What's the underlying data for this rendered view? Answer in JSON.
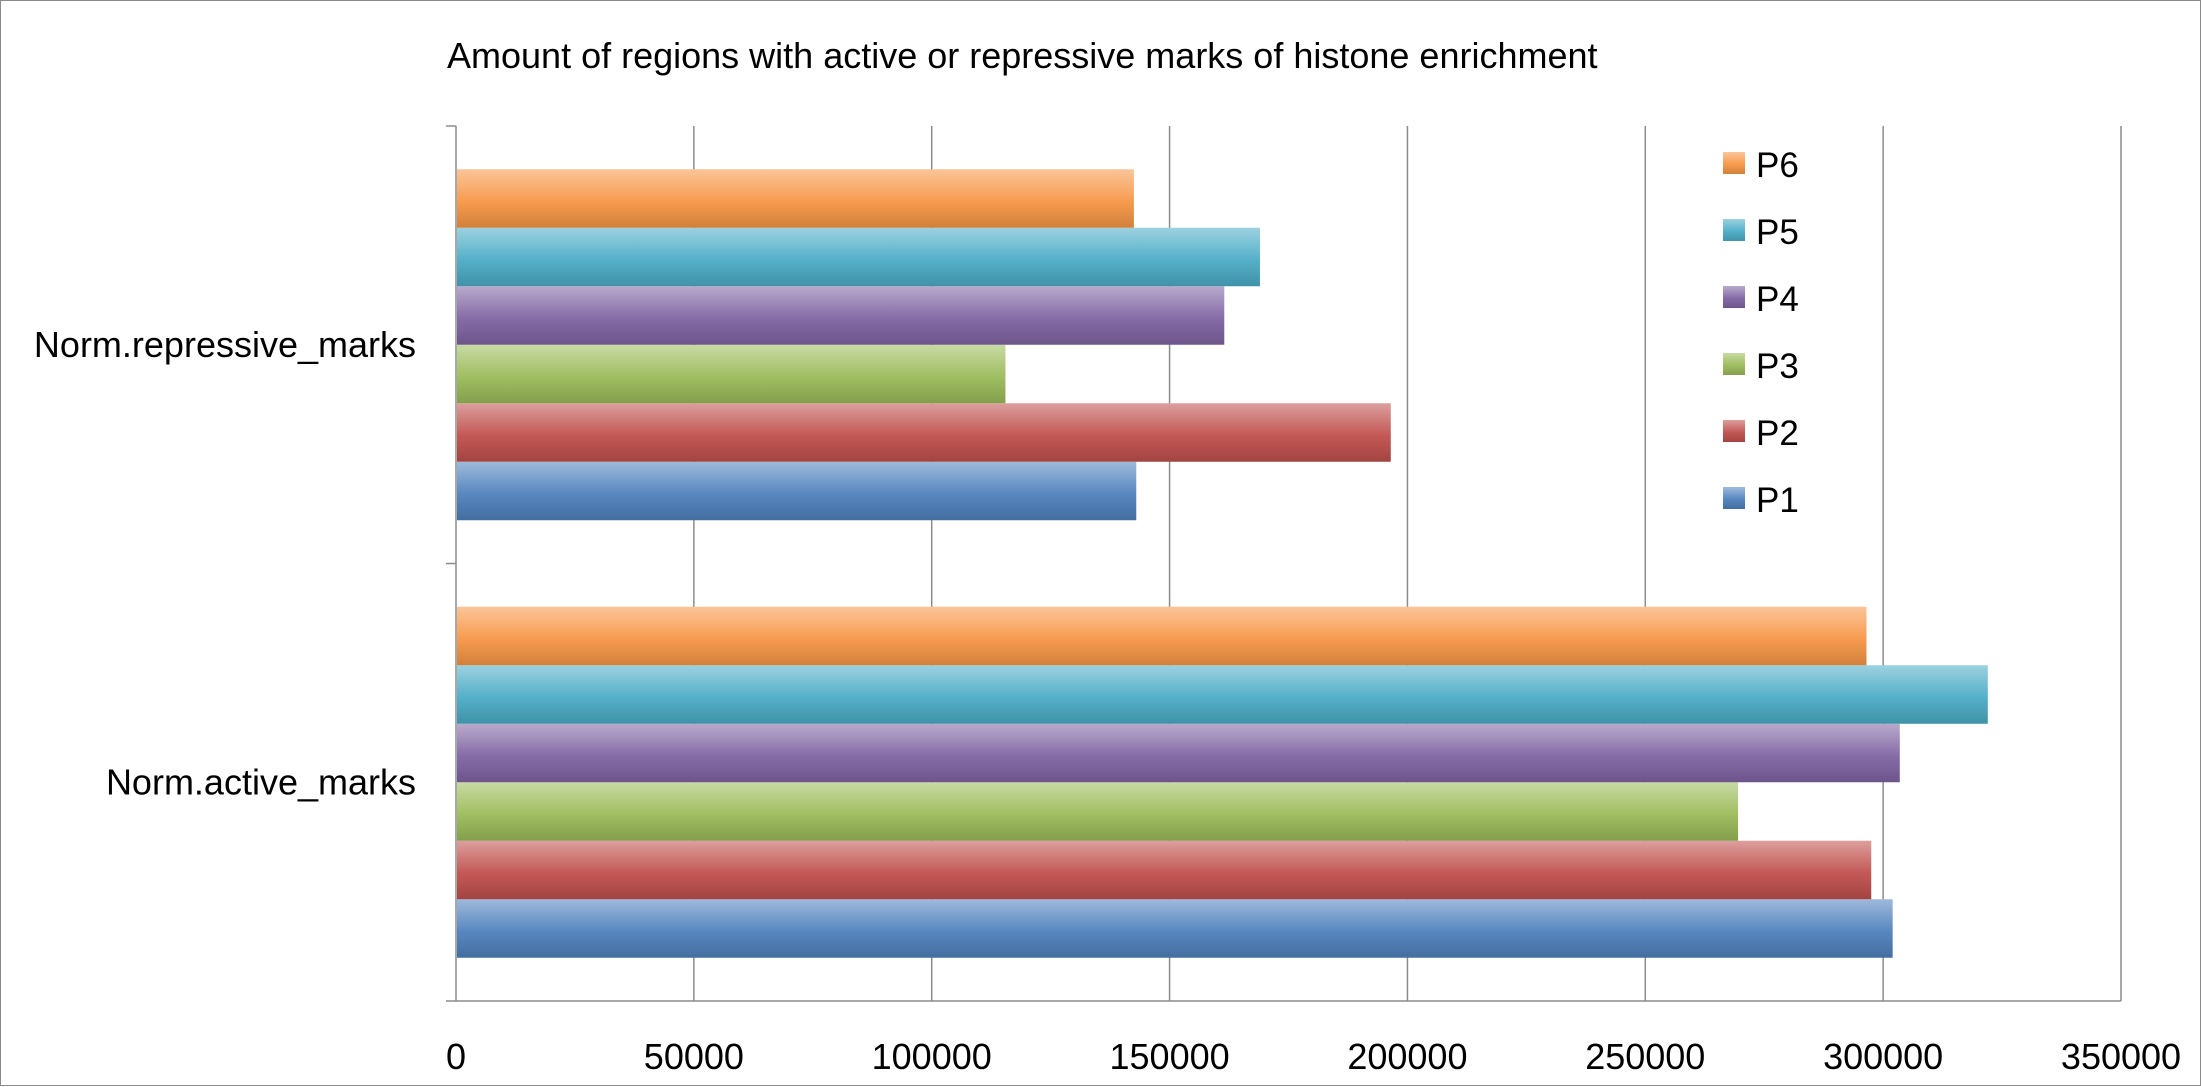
{
  "chart_data": {
    "type": "bar",
    "orientation": "horizontal",
    "title": "Amount of regions with active or repressive marks of histone enrichment",
    "categories": [
      "Norm.active_marks",
      "Norm.repressive_marks"
    ],
    "series": [
      {
        "name": "P1",
        "values": [
          302000,
          143000
        ],
        "color": "#4f81bd"
      },
      {
        "name": "P2",
        "values": [
          297500,
          196500
        ],
        "color": "#c0504d"
      },
      {
        "name": "P3",
        "values": [
          269500,
          115500
        ],
        "color": "#9bbb59"
      },
      {
        "name": "P4",
        "values": [
          303500,
          161500
        ],
        "color": "#8064a2"
      },
      {
        "name": "P5",
        "values": [
          322000,
          169000
        ],
        "color": "#4bacc6"
      },
      {
        "name": "P6",
        "values": [
          296500,
          142500
        ],
        "color": "#f79646"
      }
    ],
    "xlim": [
      0,
      350000
    ],
    "xticks": [
      0,
      50000,
      100000,
      150000,
      200000,
      250000,
      300000,
      350000
    ],
    "xtick_labels": [
      "0",
      "50000",
      "100000",
      "150000",
      "200000",
      "250000",
      "300000",
      "350000"
    ],
    "grid": "vertical",
    "legend": "top-right, reversed order"
  }
}
